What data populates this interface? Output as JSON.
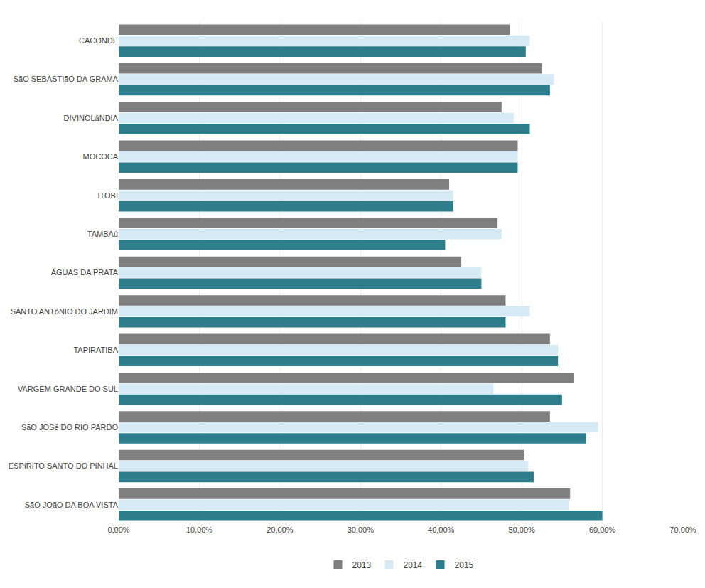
{
  "chart_data": {
    "type": "bar",
    "orientation": "horizontal",
    "categories": [
      "SãO JOãO DA BOA VISTA",
      "ESPíRITO SANTO DO PINHAL",
      "SãO JOSé DO RIO PARDO",
      "VARGEM GRANDE DO SUL",
      "TAPIRATIBA",
      "SANTO ANTôNIO DO JARDIM",
      "ÁGUAS DA PRATA",
      "TAMBAú",
      "ITOBI",
      "MOCOCA",
      "DIVINOLâNDIA",
      "SãO SEBASTIãO DA GRAMA",
      "CACONDE"
    ],
    "series": [
      {
        "name": "2013",
        "color": "#7f7f7f",
        "values": [
          0.56,
          0.503,
          0.535,
          0.565,
          0.535,
          0.48,
          0.425,
          0.47,
          0.41,
          0.495,
          0.475,
          0.525,
          0.485
        ]
      },
      {
        "name": "2014",
        "color": "#d6eaf5",
        "values": [
          0.558,
          0.508,
          0.595,
          0.465,
          0.545,
          0.51,
          0.45,
          0.475,
          0.415,
          0.495,
          0.49,
          0.54,
          0.51
        ]
      },
      {
        "name": "2015",
        "color": "#2e7d8c",
        "values": [
          0.6,
          0.515,
          0.58,
          0.55,
          0.545,
          0.48,
          0.45,
          0.405,
          0.415,
          0.495,
          0.51,
          0.535,
          0.505
        ]
      }
    ],
    "xlim": [
      0,
      0.7
    ],
    "xticks": [
      {
        "value": 0.0,
        "label": "0,00%"
      },
      {
        "value": 0.1,
        "label": "10,00%"
      },
      {
        "value": 0.2,
        "label": "20,00%"
      },
      {
        "value": 0.3,
        "label": "30,00%"
      },
      {
        "value": 0.4,
        "label": "40,00%"
      },
      {
        "value": 0.5,
        "label": "50,00%"
      },
      {
        "value": 0.6,
        "label": "60,00%"
      },
      {
        "value": 0.7,
        "label": "70,00%"
      }
    ],
    "grid": true,
    "legend": "bottom"
  }
}
